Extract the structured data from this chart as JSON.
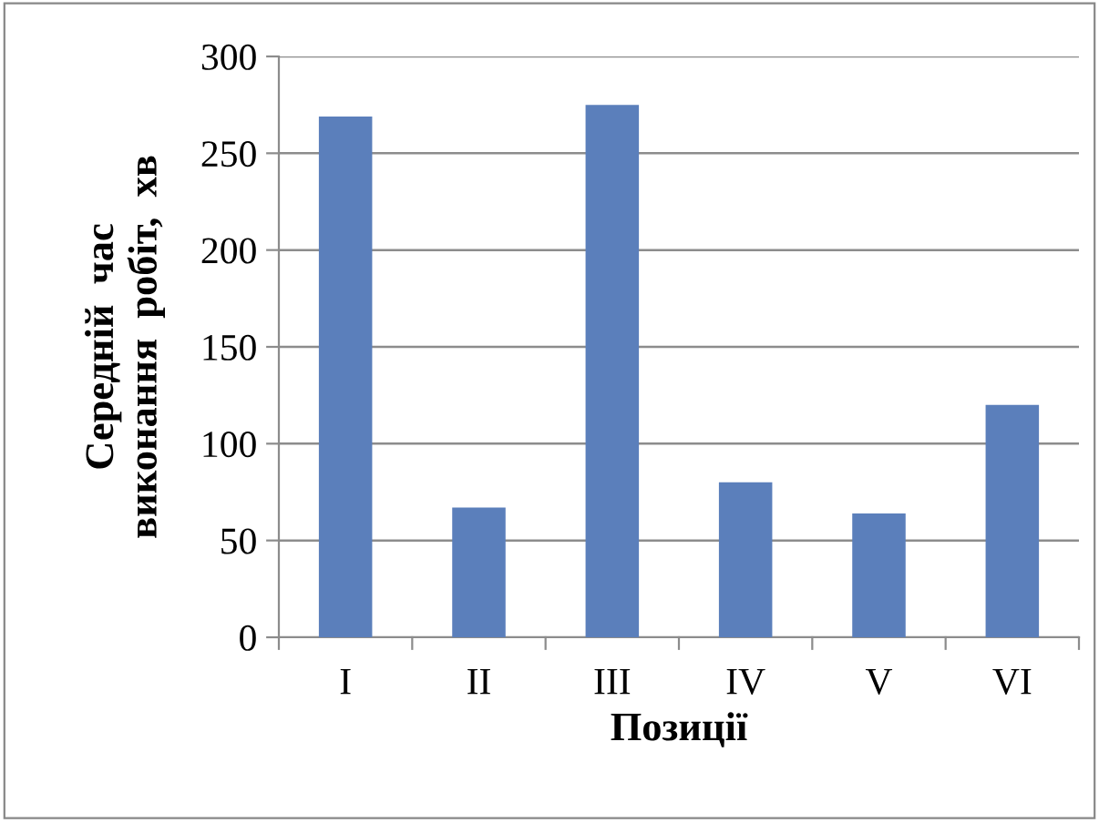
{
  "chart_data": {
    "type": "bar",
    "xlabel": "Позиції",
    "ylabel": "Середній  час\nвиконання  робіт,  хв",
    "categories": [
      "I",
      "II",
      "III",
      "IV",
      "V",
      "VI"
    ],
    "values": [
      269,
      67,
      275,
      80,
      64,
      120
    ],
    "color": "#5b7fbb",
    "ylim": [
      0,
      300
    ],
    "yticks": [
      0,
      50,
      100,
      150,
      200,
      250,
      300
    ],
    "grid": "y"
  }
}
